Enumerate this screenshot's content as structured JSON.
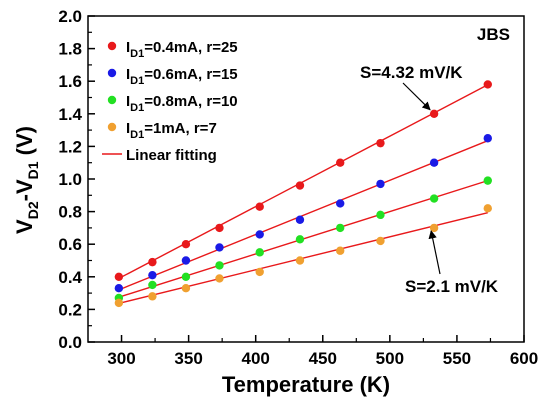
{
  "chart_data": {
    "type": "scatter",
    "xlabel": "Temperature (K)",
    "ylabel": {
      "main": "V",
      "sub1": "D2",
      "mid": "-V",
      "sub2": "D1",
      "unit": " (V)"
    },
    "xlim": [
      275,
      600
    ],
    "ylim": [
      0.0,
      2.0
    ],
    "xticks": [
      "300",
      "350",
      "400",
      "450",
      "500",
      "550",
      "600"
    ],
    "yticks": [
      "0.0",
      "0.2",
      "0.4",
      "0.6",
      "0.8",
      "1.0",
      "1.2",
      "1.4",
      "1.6",
      "1.8",
      "2.0"
    ],
    "grid": false,
    "legend_position": "top-left",
    "corner_label": "JBS",
    "series": [
      {
        "label_main": "I",
        "label_sub": "D1",
        "label_rest": "=0.4mA, r=25",
        "color": "#e8191b",
        "x": [
          298,
          323,
          348,
          373,
          403,
          433,
          463,
          493,
          533,
          573
        ],
        "y": [
          0.4,
          0.49,
          0.6,
          0.7,
          0.83,
          0.96,
          1.1,
          1.22,
          1.4,
          1.58
        ],
        "fit": [
          0.39,
          1.578
        ]
      },
      {
        "label_main": "I",
        "label_sub": "D1",
        "label_rest": "=0.6mA, r=15",
        "color": "#1a1ae6",
        "x": [
          298,
          323,
          348,
          373,
          403,
          433,
          463,
          493,
          533,
          573
        ],
        "y": [
          0.33,
          0.41,
          0.5,
          0.58,
          0.66,
          0.75,
          0.85,
          0.97,
          1.1,
          1.25
        ],
        "fit": [
          0.32,
          1.235
        ]
      },
      {
        "label_main": "I",
        "label_sub": "D1",
        "label_rest": "=0.8mA, r=10",
        "color": "#22e022",
        "x": [
          298,
          323,
          348,
          373,
          403,
          433,
          463,
          493,
          533,
          573
        ],
        "y": [
          0.27,
          0.35,
          0.4,
          0.47,
          0.55,
          0.63,
          0.7,
          0.78,
          0.88,
          0.99
        ],
        "fit": [
          0.275,
          0.99
        ]
      },
      {
        "label_main": "I",
        "label_sub": "D1",
        "label_rest": "=1mA, r=7",
        "color": "#f0a030",
        "x": [
          298,
          323,
          348,
          373,
          403,
          433,
          463,
          493,
          533,
          573
        ],
        "y": [
          0.24,
          0.28,
          0.33,
          0.39,
          0.43,
          0.5,
          0.56,
          0.62,
          0.7,
          0.82
        ],
        "fit": [
          0.237,
          0.793
        ]
      }
    ],
    "fit_legend": {
      "label": "Linear fitting",
      "color": "#e8191b"
    },
    "annotations": [
      {
        "text": "S=4.32 mV/K",
        "point": [
          533,
          1.4
        ]
      },
      {
        "text": "S=2.1 mV/K",
        "point": [
          533,
          0.7
        ]
      }
    ]
  }
}
